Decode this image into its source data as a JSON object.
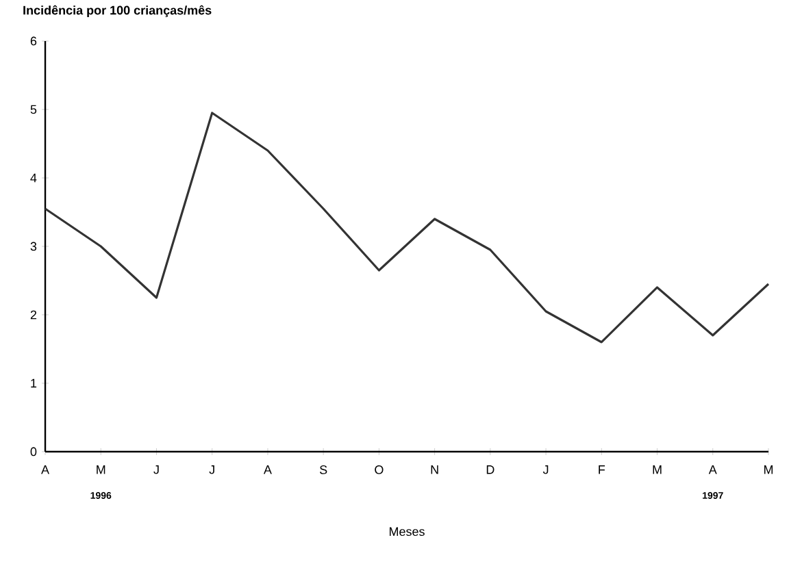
{
  "chart_data": {
    "type": "line",
    "title": "Incidência por 100 crianças/mês",
    "xlabel": "Meses",
    "categories": [
      "A",
      "M",
      "J",
      "J",
      "A",
      "S",
      "O",
      "N",
      "D",
      "J",
      "F",
      "M",
      "A",
      "M"
    ],
    "values": [
      3.55,
      3.0,
      2.25,
      4.95,
      4.4,
      3.55,
      2.65,
      3.4,
      2.95,
      2.05,
      1.6,
      2.4,
      1.7,
      2.45
    ],
    "color": "#333333",
    "ylim": [
      0,
      6
    ],
    "yticks": [
      0,
      1,
      2,
      3,
      4,
      5,
      6
    ],
    "grid": false,
    "marker": "none",
    "line_style": "solid",
    "annotations": [
      "1996",
      "1997"
    ]
  }
}
